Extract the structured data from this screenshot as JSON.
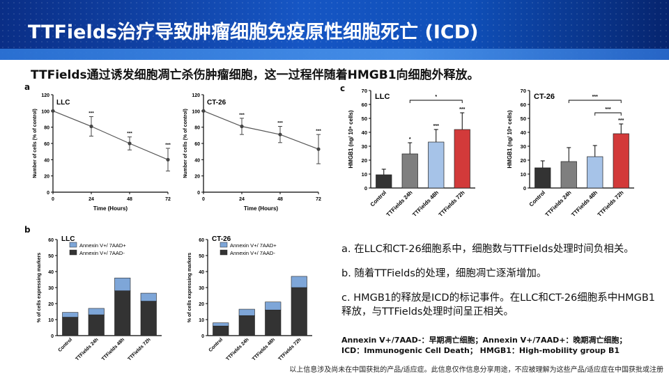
{
  "header": {
    "title": "TTFields治疗导致肿瘤细胞免疫原性细胞死亡 (ICD)"
  },
  "subtitle": "TTFields通过诱发细胞凋亡杀伤肿瘤细胞，这一过程伴随着HMGB1向细胞外释放。",
  "panels": {
    "a": "a",
    "b": "b",
    "c": "c"
  },
  "notes": [
    "a. 在LLC和CT-26细胞系中，细胞数与TTFields处理时间负相关。",
    "b. 随着TTFields的处理，细胞凋亡逐渐增加。",
    "c. HMGB1的释放是ICD的标记事件。在LLC和CT-26细胞系中HMGB1释放，与TTFields处理时间呈正相关。"
  ],
  "abbreviations": [
    "Annexin V+/7AAD-：早期凋亡细胞；Annexin V+/7AAD+：晚期凋亡细胞；",
    "ICD：Immunogenic Cell Death；  HMGB1：High-mobility group B1"
  ],
  "footer": "以上信息涉及尚未在中国获批的产品/适应症。此信息仅作信息分享用途，不应被理解为这些产品/适应症在中国获批或注册",
  "chart_data": [
    {
      "type": "line",
      "panel": "a",
      "label": "LLC",
      "x": [
        0,
        24,
        48,
        72
      ],
      "y": [
        100,
        81,
        60,
        40
      ],
      "err": [
        0,
        12,
        8,
        14
      ],
      "sig": [
        "",
        "***",
        "***",
        "***"
      ],
      "xlabel": "Time (Hours)",
      "ylabel": "Number of cells (% of control)",
      "xlim": [
        0,
        72
      ],
      "ylim": [
        0,
        120
      ],
      "xticks": [
        0,
        24,
        48,
        72
      ],
      "yticks": [
        0,
        20,
        40,
        60,
        80,
        100,
        120
      ]
    },
    {
      "type": "line",
      "panel": "a",
      "label": "CT-26",
      "x": [
        0,
        24,
        48,
        72
      ],
      "y": [
        100,
        81,
        71,
        53
      ],
      "err": [
        0,
        10,
        10,
        18
      ],
      "sig": [
        "",
        "***",
        "***",
        "***"
      ],
      "xlabel": "Time (Hours)",
      "ylabel": "Number of cells (% of control)",
      "xlim": [
        0,
        72
      ],
      "ylim": [
        0,
        120
      ],
      "xticks": [
        0,
        24,
        48,
        72
      ],
      "yticks": [
        0,
        20,
        40,
        60,
        80,
        100,
        120
      ]
    },
    {
      "type": "bar",
      "stacked": true,
      "panel": "b",
      "label": "LLC",
      "categories": [
        "Control",
        "TTFields 24h",
        "TTFields 48h",
        "TTFields 72h"
      ],
      "series": [
        {
          "name": "Annexin V+/ 7AAD-",
          "values": [
            11.5,
            13,
            28,
            21.5
          ],
          "color": "#333333"
        },
        {
          "name": "Annexin V+/ 7AAD+",
          "values": [
            3,
            4,
            8,
            5
          ],
          "color": "#7ea6d8"
        }
      ],
      "ylabel": "% of cells expressing markers",
      "ylim": [
        0,
        60
      ],
      "yticks": [
        0,
        10,
        20,
        30,
        40,
        50,
        60
      ]
    },
    {
      "type": "bar",
      "stacked": true,
      "panel": "b",
      "label": "CT-26",
      "categories": [
        "Control",
        "TTFields 24h",
        "TTFields 48h",
        "TTFields 72h"
      ],
      "series": [
        {
          "name": "Annexin V+/ 7AAD-",
          "values": [
            6,
            12.5,
            16,
            30
          ],
          "color": "#333333"
        },
        {
          "name": "Annexin V+/ 7AAD+",
          "values": [
            2,
            4,
            5,
            7
          ],
          "color": "#7ea6d8"
        }
      ],
      "ylabel": "% of cells expressing markers",
      "ylim": [
        0,
        60
      ],
      "yticks": [
        0,
        10,
        20,
        30,
        40,
        50,
        60
      ]
    },
    {
      "type": "bar",
      "panel": "c",
      "label": "LLC",
      "categories": [
        "Control",
        "TTFields 24h",
        "TTFields 48h",
        "TTFields 72h"
      ],
      "values": [
        9.5,
        24.5,
        33,
        42
      ],
      "err": [
        4,
        8,
        9,
        12
      ],
      "colors": [
        "#333333",
        "#7f7f7f",
        "#a6c3e8",
        "#d23a3a"
      ],
      "sig": [
        "",
        "*",
        "***",
        "***"
      ],
      "brackets": [
        {
          "from": 1,
          "to": 3,
          "label": "*",
          "y": 63
        }
      ],
      "ylabel": "HMGB1 (ng/ 10⁶ cells)",
      "ylim": [
        0,
        70
      ],
      "yticks": [
        0,
        10,
        20,
        30,
        40,
        50,
        60,
        70
      ]
    },
    {
      "type": "bar",
      "panel": "c",
      "label": "CT-26",
      "categories": [
        "Control",
        "TTFields 24h",
        "TTFields 48h",
        "TTFields 72h"
      ],
      "values": [
        14.5,
        19,
        22.5,
        39
      ],
      "err": [
        5,
        10,
        8,
        7
      ],
      "colors": [
        "#333333",
        "#7f7f7f",
        "#a6c3e8",
        "#d23a3a"
      ],
      "sig": [
        "",
        "",
        "",
        "***"
      ],
      "brackets": [
        {
          "from": 1,
          "to": 3,
          "label": "***",
          "y": 63
        },
        {
          "from": 2,
          "to": 3,
          "label": "***",
          "y": 54
        }
      ],
      "ylabel": "HMGB1 (ng/ 10⁶ cells)",
      "ylim": [
        0,
        70
      ],
      "yticks": [
        0,
        10,
        20,
        30,
        40,
        50,
        60,
        70
      ]
    }
  ]
}
